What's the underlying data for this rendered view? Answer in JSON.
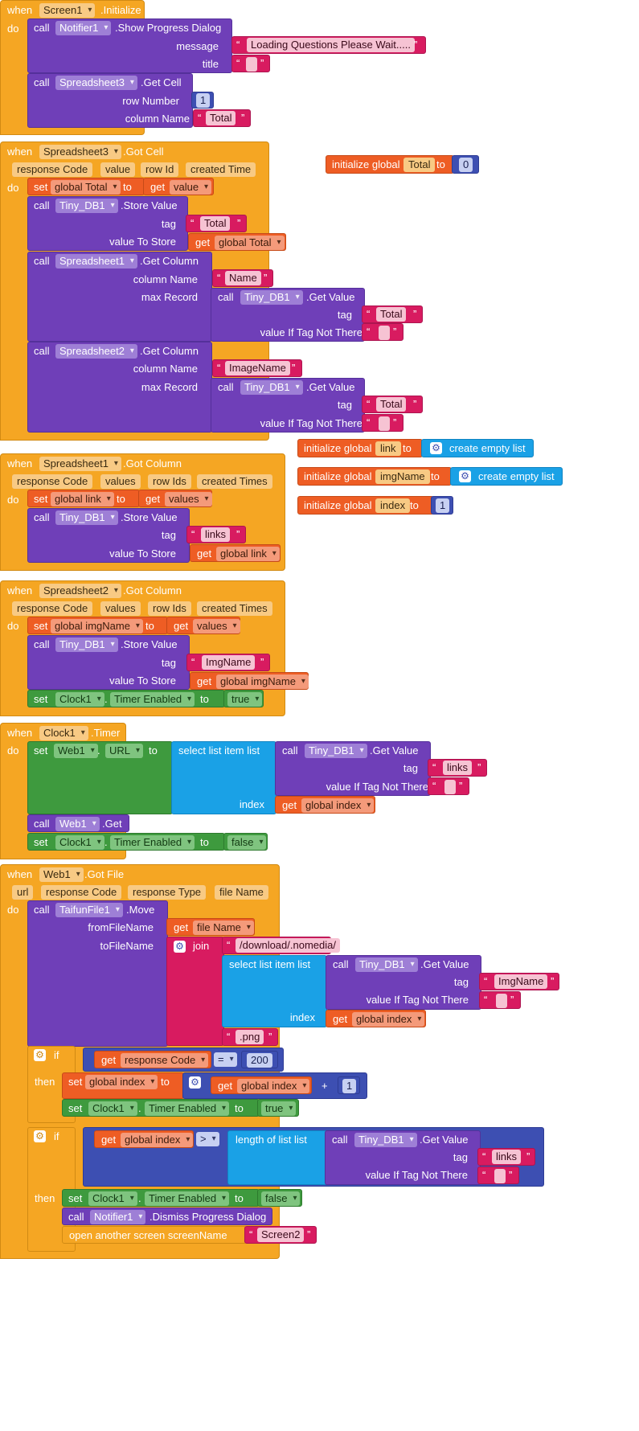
{
  "b": {
    "when": "when",
    "do": "do",
    "call": "call",
    "set": "set",
    "get": "get",
    "to": "to",
    "if": "if",
    "then": "then",
    "open": "open another screen  screenName",
    "cel": "create empty list",
    "sli": "select list item  list",
    "lol": "length of list  list",
    "join": "join",
    "init": "initialize global",
    "index": "index",
    "tag": "tag",
    "vin": "value If Tag Not There",
    "vts": "value To Store",
    "q": "“",
    "qe": "”",
    "dot": ".",
    "gt": ">",
    "eq": "=",
    "plus": "+",
    "gv": ".Get Value",
    "sv": ".Store Value",
    "gc": ".Get Column",
    "cn": "column Name",
    "mr": "max Record",
    "te": "Timer Enabled",
    "true": "true",
    "false": "false"
  },
  "e1": {
    "comp": "Screen1",
    "ev": ".Initialize",
    "notifier": "Notifier1",
    "spd": ".Show Progress Dialog",
    "message": "message",
    "msg": "Loading Questions Please Wait.....",
    "title": "title",
    "ss3": "Spreadsheet3",
    "getcell": ".Get Cell",
    "rown": "row Number",
    "rowv": "1",
    "colv": "Total"
  },
  "e2": {
    "comp": "Spreadsheet3",
    "ev": ".Got Cell",
    "params": [
      "response Code",
      "value",
      "row Id",
      "created Time"
    ],
    "gt": "global Total",
    "val": "value",
    "db": "Tiny_DB1",
    "tot": "Total",
    "ss1": "Spreadsheet1",
    "name": "Name",
    "ss2": "Spreadsheet2",
    "img": "ImageName"
  },
  "init": {
    "total": "Total",
    "total_v": "0",
    "link": "link",
    "img": "imgName",
    "index": "index",
    "index_v": "1"
  },
  "e3": {
    "comp": "Spreadsheet1",
    "ev": ".Got Column",
    "params": [
      "response Code",
      "values",
      "row Ids",
      "created Times"
    ],
    "gl": "global link",
    "vals": "values",
    "links": "links"
  },
  "e4": {
    "comp": "Spreadsheet2",
    "ev": ".Got Column",
    "params": [
      "response Code",
      "values",
      "row Ids",
      "created Times"
    ],
    "gi": "global imgName",
    "imgn": "ImgName",
    "clock": "Clock1"
  },
  "e5": {
    "comp": "Clock1",
    "ev": ".Timer",
    "web": "Web1",
    "url": "URL",
    "gidx": "global index",
    "get": ".Get"
  },
  "e6": {
    "comp": "Web1",
    "ev": ".Got File",
    "params": [
      "url",
      "response Code",
      "response Type",
      "file Name"
    ],
    "taifun": "TaifunFile1",
    "move": ".Move",
    "from": "fromFileName",
    "tofn": "toFileName",
    "fname": "file Name",
    "path": "/download/.nomedia/",
    "png": ".png",
    "rc": "response Code",
    "v200": "200",
    "dismiss": ".Dismiss Progress Dialog",
    "scr": "Screen2"
  }
}
